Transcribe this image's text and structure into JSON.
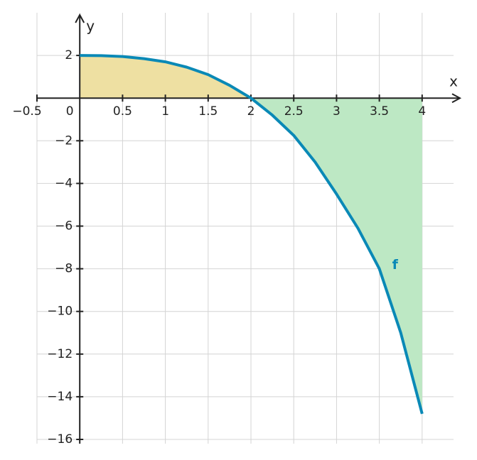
{
  "chart_data": {
    "type": "line",
    "x_label": "x",
    "y_label": "y",
    "x": [
      0,
      0.25,
      0.5,
      0.75,
      1,
      1.25,
      1.5,
      1.75,
      2,
      2.25,
      2.5,
      2.75,
      3,
      3.25,
      3.5,
      3.75,
      4
    ],
    "series": [
      {
        "name": "f",
        "color": "#0a89b6",
        "values": [
          2,
          1.99,
          1.95,
          1.85,
          1.7,
          1.45,
          1.1,
          0.6,
          0,
          -0.8,
          -1.75,
          -3,
          -4.5,
          -6.1,
          -8,
          -11,
          -14.8
        ]
      }
    ],
    "area_colors": [
      "#eee0a2",
      "#bde8c4"
    ],
    "xlim": [
      -0.5,
      4.45
    ],
    "ylim": [
      -16.2,
      4
    ],
    "xticks": [
      {
        "value": -0.5,
        "label": "−0.5"
      },
      0,
      0.5,
      1,
      1.5,
      2,
      2.5,
      3,
      3.5,
      4
    ],
    "yticks": [
      {
        "value": -16,
        "label": "−16"
      },
      {
        "value": -14,
        "label": "−14"
      },
      {
        "value": -12,
        "label": "−12"
      },
      {
        "value": -10,
        "label": "−10"
      },
      {
        "value": -8,
        "label": "−8"
      },
      {
        "value": -6,
        "label": "−6"
      },
      {
        "value": -4,
        "label": "−4"
      },
      {
        "value": -2,
        "label": "−2"
      },
      2
    ],
    "grid": true
  }
}
